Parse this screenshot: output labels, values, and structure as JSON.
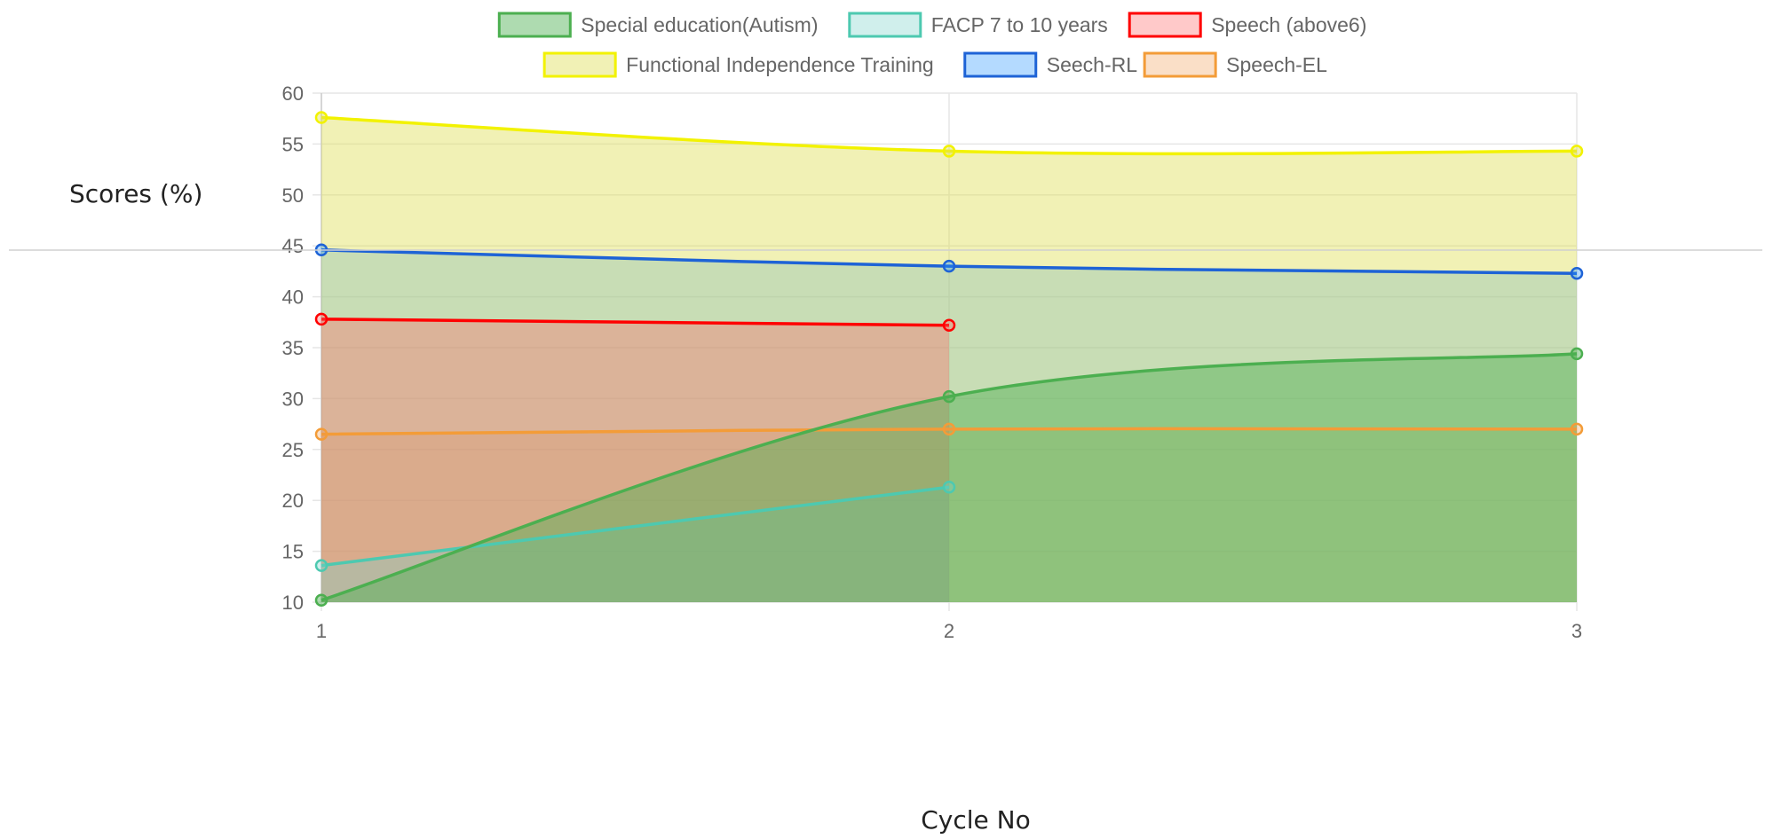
{
  "chart_data": {
    "type": "area",
    "x": [
      1,
      2,
      3
    ],
    "xlabel": "Cycle No",
    "ylabel": "Scores (%)",
    "ylim": [
      10,
      60
    ],
    "yticks": [
      10,
      15,
      20,
      25,
      30,
      35,
      40,
      45,
      50,
      55,
      60
    ],
    "grid": true,
    "legend_position": "top",
    "series": [
      {
        "name": "Special education(Autism)",
        "values": [
          10.2,
          30.2,
          34.4
        ],
        "color": "#4caf50",
        "fill": "rgba(76,175,80,0.45)"
      },
      {
        "name": "FACP 7 to 10 years",
        "values": [
          13.6,
          21.3,
          null
        ],
        "color": "#4dc9b0",
        "fill": "rgba(120,210,200,0.35)"
      },
      {
        "name": "Speech (above6)",
        "values": [
          37.8,
          37.2,
          null
        ],
        "color": "#ff0000",
        "fill": "rgba(255,99,99,0.35)"
      },
      {
        "name": "Functional Independence Training",
        "values": [
          57.6,
          54.3,
          54.3
        ],
        "color": "#f2f200",
        "fill": "rgba(225,225,90,0.45)"
      },
      {
        "name": "Seech-RL",
        "values": [
          44.6,
          43.0,
          42.3
        ],
        "color": "#1e63d6",
        "fill": "rgba(40,150,255,0.35)"
      },
      {
        "name": "Speech-EL",
        "values": [
          26.5,
          27.0,
          27.0
        ],
        "color": "#f39c38",
        "fill": "rgba(240,150,70,0.30)"
      }
    ]
  }
}
